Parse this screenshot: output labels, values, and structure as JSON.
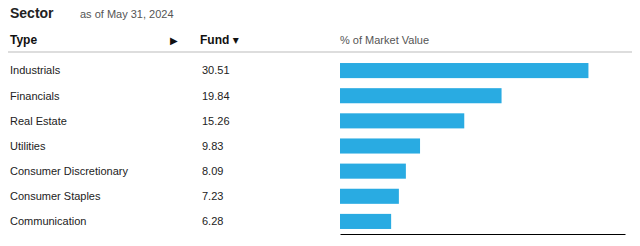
{
  "chart_data": {
    "type": "bar",
    "orientation": "horizontal",
    "title": "Sector",
    "subtitle": "as of May 31, 2024",
    "xlabel": "% of Market Value",
    "annotations": [
      "Type",
      "▶",
      "Fund ▾"
    ],
    "categories": [
      "Industrials",
      "Financials",
      "Real Estate",
      "Utilities",
      "Consumer Discretionary",
      "Consumer Staples",
      "Communication"
    ],
    "values": [
      30.51,
      19.84,
      15.26,
      9.83,
      8.09,
      7.23,
      6.28
    ],
    "color": "#29ABE2",
    "xlim": [
      0,
      35
    ],
    "grid": false,
    "data_labels": true,
    "tick_labels": false
  }
}
